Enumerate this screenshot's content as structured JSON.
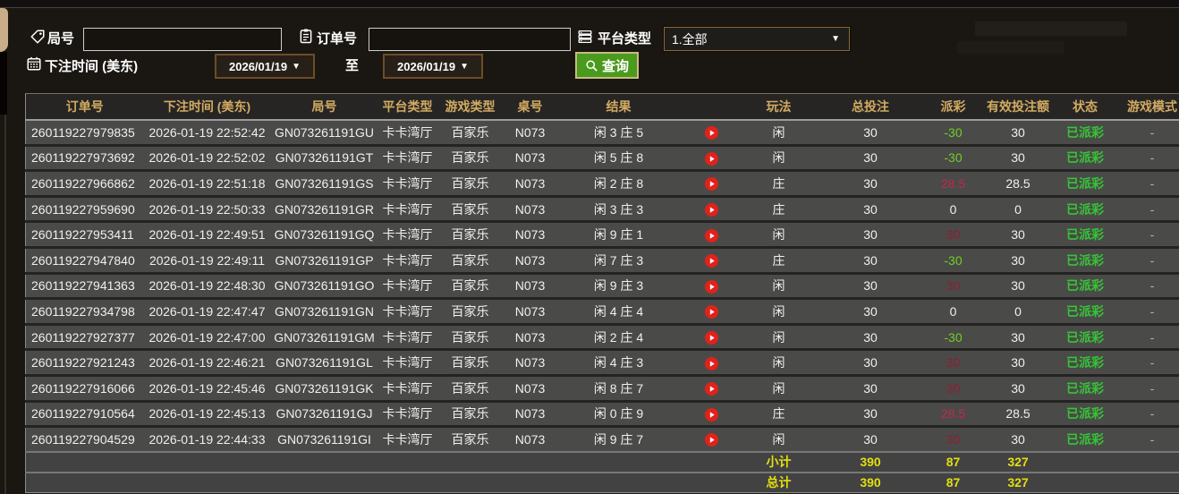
{
  "filters": {
    "round_label": "局号",
    "round_value": "",
    "order_label": "订单号",
    "order_value": "",
    "platform_label": "平台类型",
    "platform_value": "1.全部",
    "time_label": "下注时间 (美东)",
    "date_from": "2026/01/19",
    "date_to": "2026/01/19",
    "to_label": "至",
    "search_label": "查询",
    "dropdown_arrow": "▼"
  },
  "icons": {
    "round": "tag-icon",
    "order": "clipboard-icon",
    "platform": "list-icon",
    "time": "calendar-icon",
    "search": "search-icon",
    "result_video": "play-icon"
  },
  "colors": {
    "header_gold": "#d2ab62",
    "payout_negative_green": "#6fd020",
    "payout_positive_red": "#c22a4a",
    "payout_positive_dim_red": "#8e1f33",
    "status_paid_green": "#35c435",
    "summary_yellow": "#e3df0f",
    "search_button_green": "#4a9a1d",
    "play_icon_red": "#e32119"
  },
  "table": {
    "headers": [
      {
        "key": "order",
        "label": "订单号"
      },
      {
        "key": "time",
        "label": "下注时间 (美东)"
      },
      {
        "key": "round",
        "label": "局号"
      },
      {
        "key": "platform",
        "label": "平台类型"
      },
      {
        "key": "game_type",
        "label": "游戏类型"
      },
      {
        "key": "table_no",
        "label": "桌号"
      },
      {
        "key": "result",
        "label": "结果"
      },
      {
        "key": "video",
        "label": ""
      },
      {
        "key": "play",
        "label": "玩法"
      },
      {
        "key": "total_bet",
        "label": "总投注"
      },
      {
        "key": "payout",
        "label": "派彩"
      },
      {
        "key": "valid_bet",
        "label": "有效投注额"
      },
      {
        "key": "status",
        "label": "状态"
      },
      {
        "key": "game_mode",
        "label": "游戏模式"
      }
    ],
    "rows": [
      {
        "order": "260119227979835",
        "time": "2026-01-19 22:52:42",
        "round": "GN073261191GU",
        "platform": "卡卡湾厅",
        "game_type": "百家乐",
        "table_no": "N073",
        "result": "闲 3 庄 5",
        "play": "闲",
        "total_bet": "30",
        "payout": "-30",
        "payout_color": "green",
        "valid_bet": "30",
        "status": "已派彩",
        "game_mode": "-"
      },
      {
        "order": "260119227973692",
        "time": "2026-01-19 22:52:02",
        "round": "GN073261191GT",
        "platform": "卡卡湾厅",
        "game_type": "百家乐",
        "table_no": "N073",
        "result": "闲 5 庄 8",
        "play": "闲",
        "total_bet": "30",
        "payout": "-30",
        "payout_color": "green",
        "valid_bet": "30",
        "status": "已派彩",
        "game_mode": "-"
      },
      {
        "order": "260119227966862",
        "time": "2026-01-19 22:51:18",
        "round": "GN073261191GS",
        "platform": "卡卡湾厅",
        "game_type": "百家乐",
        "table_no": "N073",
        "result": "闲 2 庄 8",
        "play": "庄",
        "total_bet": "30",
        "payout": "28.5",
        "payout_color": "crimson",
        "valid_bet": "28.5",
        "status": "已派彩",
        "game_mode": "-"
      },
      {
        "order": "260119227959690",
        "time": "2026-01-19 22:50:33",
        "round": "GN073261191GR",
        "platform": "卡卡湾厅",
        "game_type": "百家乐",
        "table_no": "N073",
        "result": "闲 3 庄 3",
        "play": "庄",
        "total_bet": "30",
        "payout": "0",
        "payout_color": "white",
        "valid_bet": "0",
        "status": "已派彩",
        "game_mode": "-"
      },
      {
        "order": "260119227953411",
        "time": "2026-01-19 22:49:51",
        "round": "GN073261191GQ",
        "platform": "卡卡湾厅",
        "game_type": "百家乐",
        "table_no": "N073",
        "result": "闲 9 庄 1",
        "play": "闲",
        "total_bet": "30",
        "payout": "30",
        "payout_color": "darkred",
        "valid_bet": "30",
        "status": "已派彩",
        "game_mode": "-"
      },
      {
        "order": "260119227947840",
        "time": "2026-01-19 22:49:11",
        "round": "GN073261191GP",
        "platform": "卡卡湾厅",
        "game_type": "百家乐",
        "table_no": "N073",
        "result": "闲 7 庄 3",
        "play": "庄",
        "total_bet": "30",
        "payout": "-30",
        "payout_color": "green",
        "valid_bet": "30",
        "status": "已派彩",
        "game_mode": "-"
      },
      {
        "order": "260119227941363",
        "time": "2026-01-19 22:48:30",
        "round": "GN073261191GO",
        "platform": "卡卡湾厅",
        "game_type": "百家乐",
        "table_no": "N073",
        "result": "闲 9 庄 3",
        "play": "闲",
        "total_bet": "30",
        "payout": "30",
        "payout_color": "darkred",
        "valid_bet": "30",
        "status": "已派彩",
        "game_mode": "-"
      },
      {
        "order": "260119227934798",
        "time": "2026-01-19 22:47:47",
        "round": "GN073261191GN",
        "platform": "卡卡湾厅",
        "game_type": "百家乐",
        "table_no": "N073",
        "result": "闲 4 庄 4",
        "play": "闲",
        "total_bet": "30",
        "payout": "0",
        "payout_color": "white",
        "valid_bet": "0",
        "status": "已派彩",
        "game_mode": "-"
      },
      {
        "order": "260119227927377",
        "time": "2026-01-19 22:47:00",
        "round": "GN073261191GM",
        "platform": "卡卡湾厅",
        "game_type": "百家乐",
        "table_no": "N073",
        "result": "闲 2 庄 4",
        "play": "闲",
        "total_bet": "30",
        "payout": "-30",
        "payout_color": "green",
        "valid_bet": "30",
        "status": "已派彩",
        "game_mode": "-"
      },
      {
        "order": "260119227921243",
        "time": "2026-01-19 22:46:21",
        "round": "GN073261191GL",
        "platform": "卡卡湾厅",
        "game_type": "百家乐",
        "table_no": "N073",
        "result": "闲 4 庄 3",
        "play": "闲",
        "total_bet": "30",
        "payout": "30",
        "payout_color": "darkred",
        "valid_bet": "30",
        "status": "已派彩",
        "game_mode": "-"
      },
      {
        "order": "260119227916066",
        "time": "2026-01-19 22:45:46",
        "round": "GN073261191GK",
        "platform": "卡卡湾厅",
        "game_type": "百家乐",
        "table_no": "N073",
        "result": "闲 8 庄 7",
        "play": "闲",
        "total_bet": "30",
        "payout": "30",
        "payout_color": "darkred",
        "valid_bet": "30",
        "status": "已派彩",
        "game_mode": "-"
      },
      {
        "order": "260119227910564",
        "time": "2026-01-19 22:45:13",
        "round": "GN073261191GJ",
        "platform": "卡卡湾厅",
        "game_type": "百家乐",
        "table_no": "N073",
        "result": "闲 0 庄 9",
        "play": "庄",
        "total_bet": "30",
        "payout": "28.5",
        "payout_color": "crimson",
        "valid_bet": "28.5",
        "status": "已派彩",
        "game_mode": "-"
      },
      {
        "order": "260119227904529",
        "time": "2026-01-19 22:44:33",
        "round": "GN073261191GI",
        "platform": "卡卡湾厅",
        "game_type": "百家乐",
        "table_no": "N073",
        "result": "闲 9 庄 7",
        "play": "闲",
        "total_bet": "30",
        "payout": "30",
        "payout_color": "darkred",
        "valid_bet": "30",
        "status": "已派彩",
        "game_mode": "-"
      }
    ],
    "subtotal": {
      "play": "小计",
      "total_bet": "390",
      "payout": "87",
      "valid_bet": "327"
    },
    "total": {
      "play": "总计",
      "total_bet": "390",
      "payout": "87",
      "valid_bet": "327"
    }
  }
}
